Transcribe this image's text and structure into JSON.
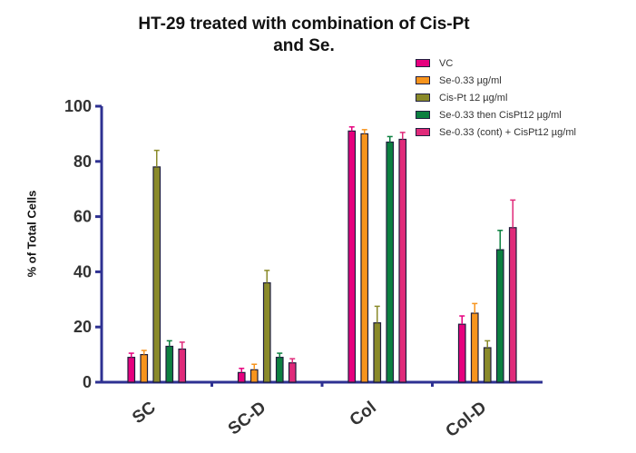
{
  "chart_data": {
    "type": "bar",
    "title_line1": "HT-29 treated with combination of  Cis-Pt",
    "title_line2": "and Se.",
    "xlabel": "",
    "ylabel": "% of Total Cells",
    "ylim": [
      0,
      100
    ],
    "yticks": [
      "0",
      "20",
      "40",
      "60",
      "80",
      "100"
    ],
    "categories": [
      "SC",
      "SC-D",
      "Col",
      "Col-D"
    ],
    "legend_position": "top-right",
    "grid": false,
    "series": [
      {
        "name": "VC",
        "color": "#e6007e",
        "values": [
          9,
          3.5,
          91,
          21
        ],
        "errors": [
          1.5,
          1.5,
          1.5,
          3
        ]
      },
      {
        "name": "Se-0.33 µg/ml",
        "color": "#f7941d",
        "values": [
          10,
          4.5,
          90,
          25
        ],
        "errors": [
          1.5,
          2,
          1.5,
          3.5
        ]
      },
      {
        "name": "Cis-Pt 12 µg/ml",
        "color": "#8a8a2a",
        "values": [
          78,
          36,
          21.5,
          12.5
        ],
        "errors": [
          6,
          4.5,
          6,
          2.5
        ]
      },
      {
        "name": "Se-0.33 then CisPt12 µg/ml",
        "color": "#0c8040",
        "values": [
          13,
          9,
          87,
          48
        ],
        "errors": [
          2,
          1.5,
          2,
          7
        ]
      },
      {
        "name": "Se-0.33 (cont) + CisPt12 µg/ml",
        "color": "#e02a7a",
        "values": [
          12,
          7,
          88,
          56
        ],
        "errors": [
          2.5,
          1.5,
          2.5,
          10
        ]
      }
    ],
    "axis_color": "#2e3192"
  }
}
